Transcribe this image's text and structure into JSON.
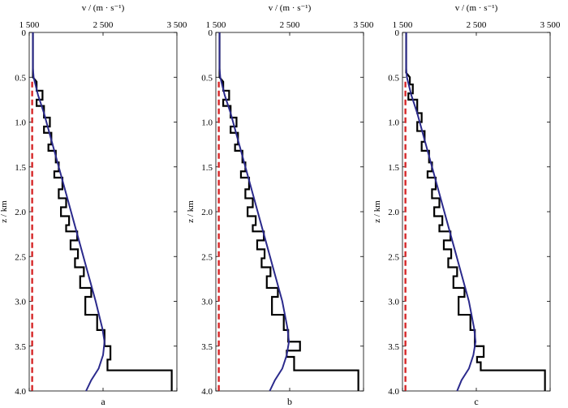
{
  "figure": {
    "panel_labels": [
      "a",
      "b",
      "c"
    ]
  },
  "colors": {
    "true_model": "#000000",
    "initial_model": "#d62728",
    "inverted_model": "#2b2a8c"
  },
  "chart_data": [
    {
      "type": "line",
      "panel": "a",
      "xlabel": "v / (m · s⁻¹)",
      "ylabel": "z / km",
      "xlim": [
        1500,
        3500
      ],
      "ylim": [
        0,
        4.0
      ],
      "xticks": [
        "1 500",
        "2 500",
        "3 500"
      ],
      "yticks": [
        "0",
        "0.5",
        "1.0",
        "1.5",
        "2.0",
        "2.5",
        "3.0",
        "3.5",
        "4.0"
      ],
      "x_axis_position": "top",
      "y_reversed": true,
      "series": [
        {
          "role": "true_model",
          "style": "solid-step",
          "points": [
            [
              1550,
              0
            ],
            [
              1550,
              0.5
            ],
            [
              1600,
              0.55
            ],
            [
              1600,
              0.65
            ],
            [
              1680,
              0.65
            ],
            [
              1680,
              0.75
            ],
            [
              1600,
              0.75
            ],
            [
              1600,
              0.82
            ],
            [
              1700,
              0.82
            ],
            [
              1700,
              0.95
            ],
            [
              1780,
              0.95
            ],
            [
              1780,
              1.05
            ],
            [
              1700,
              1.05
            ],
            [
              1700,
              1.12
            ],
            [
              1800,
              1.12
            ],
            [
              1800,
              1.25
            ],
            [
              1760,
              1.25
            ],
            [
              1760,
              1.32
            ],
            [
              1860,
              1.32
            ],
            [
              1860,
              1.45
            ],
            [
              1900,
              1.45
            ],
            [
              1900,
              1.55
            ],
            [
              1840,
              1.55
            ],
            [
              1840,
              1.62
            ],
            [
              1950,
              1.62
            ],
            [
              1950,
              1.75
            ],
            [
              1900,
              1.75
            ],
            [
              1900,
              1.85
            ],
            [
              2000,
              1.85
            ],
            [
              2000,
              1.95
            ],
            [
              1930,
              1.95
            ],
            [
              1930,
              2.05
            ],
            [
              2040,
              2.05
            ],
            [
              2040,
              2.15
            ],
            [
              2000,
              2.15
            ],
            [
              2000,
              2.22
            ],
            [
              2150,
              2.22
            ],
            [
              2150,
              2.32
            ],
            [
              2060,
              2.32
            ],
            [
              2060,
              2.42
            ],
            [
              2160,
              2.42
            ],
            [
              2160,
              2.52
            ],
            [
              2120,
              2.52
            ],
            [
              2120,
              2.62
            ],
            [
              2240,
              2.62
            ],
            [
              2240,
              2.72
            ],
            [
              2190,
              2.72
            ],
            [
              2190,
              2.85
            ],
            [
              2340,
              2.85
            ],
            [
              2340,
              2.95
            ],
            [
              2260,
              2.95
            ],
            [
              2260,
              3.15
            ],
            [
              2420,
              3.15
            ],
            [
              2420,
              3.32
            ],
            [
              2520,
              3.32
            ],
            [
              2520,
              3.5
            ],
            [
              2600,
              3.5
            ],
            [
              2600,
              3.65
            ],
            [
              2560,
              3.65
            ],
            [
              2560,
              3.77
            ],
            [
              3430,
              3.77
            ],
            [
              3430,
              4.0
            ]
          ]
        },
        {
          "role": "initial_model",
          "style": "dashed",
          "points": [
            [
              1540,
              0.55
            ],
            [
              1540,
              4.0
            ]
          ]
        },
        {
          "role": "inverted_model",
          "style": "solid",
          "points": [
            [
              1550,
              0
            ],
            [
              1550,
              0.4
            ],
            [
              1560,
              0.5
            ],
            [
              1620,
              0.7
            ],
            [
              1700,
              0.9
            ],
            [
              1800,
              1.2
            ],
            [
              1900,
              1.5
            ],
            [
              2000,
              1.8
            ],
            [
              2100,
              2.1
            ],
            [
              2200,
              2.4
            ],
            [
              2300,
              2.7
            ],
            [
              2400,
              3.0
            ],
            [
              2490,
              3.3
            ],
            [
              2520,
              3.45
            ],
            [
              2500,
              3.6
            ],
            [
              2440,
              3.75
            ],
            [
              2340,
              3.88
            ],
            [
              2270,
              4.0
            ]
          ]
        }
      ]
    },
    {
      "type": "line",
      "panel": "b",
      "xlabel": "v / (m · s⁻¹)",
      "ylabel": "z / km",
      "xlim": [
        1500,
        3500
      ],
      "ylim": [
        0,
        4.0
      ],
      "xticks": [
        "1 500",
        "2 500",
        "3 500"
      ],
      "yticks": [
        "0",
        "0.5",
        "1.0",
        "1.5",
        "2.0",
        "2.5",
        "3.0",
        "3.5",
        "4.0"
      ],
      "x_axis_position": "top",
      "y_reversed": true,
      "series": [
        {
          "role": "true_model",
          "style": "solid-step",
          "points": [
            [
              1550,
              0
            ],
            [
              1550,
              0.5
            ],
            [
              1600,
              0.55
            ],
            [
              1600,
              0.65
            ],
            [
              1680,
              0.65
            ],
            [
              1680,
              0.75
            ],
            [
              1600,
              0.75
            ],
            [
              1600,
              0.82
            ],
            [
              1700,
              0.82
            ],
            [
              1700,
              0.95
            ],
            [
              1780,
              0.95
            ],
            [
              1780,
              1.05
            ],
            [
              1700,
              1.05
            ],
            [
              1700,
              1.12
            ],
            [
              1800,
              1.12
            ],
            [
              1800,
              1.25
            ],
            [
              1760,
              1.25
            ],
            [
              1760,
              1.32
            ],
            [
              1860,
              1.32
            ],
            [
              1860,
              1.45
            ],
            [
              1900,
              1.45
            ],
            [
              1900,
              1.55
            ],
            [
              1840,
              1.55
            ],
            [
              1840,
              1.62
            ],
            [
              1950,
              1.62
            ],
            [
              1950,
              1.75
            ],
            [
              1900,
              1.75
            ],
            [
              1900,
              1.85
            ],
            [
              2000,
              1.85
            ],
            [
              2000,
              1.95
            ],
            [
              1930,
              1.95
            ],
            [
              1930,
              2.05
            ],
            [
              2040,
              2.05
            ],
            [
              2040,
              2.15
            ],
            [
              2000,
              2.15
            ],
            [
              2000,
              2.22
            ],
            [
              2150,
              2.22
            ],
            [
              2150,
              2.32
            ],
            [
              2060,
              2.32
            ],
            [
              2060,
              2.42
            ],
            [
              2160,
              2.42
            ],
            [
              2160,
              2.52
            ],
            [
              2120,
              2.52
            ],
            [
              2120,
              2.62
            ],
            [
              2240,
              2.62
            ],
            [
              2240,
              2.72
            ],
            [
              2190,
              2.72
            ],
            [
              2190,
              2.85
            ],
            [
              2340,
              2.85
            ],
            [
              2340,
              2.95
            ],
            [
              2260,
              2.95
            ],
            [
              2260,
              3.15
            ],
            [
              2420,
              3.15
            ],
            [
              2420,
              3.32
            ],
            [
              2480,
              3.32
            ],
            [
              2480,
              3.45
            ],
            [
              2640,
              3.45
            ],
            [
              2640,
              3.55
            ],
            [
              2460,
              3.55
            ],
            [
              2460,
              3.62
            ],
            [
              2560,
              3.62
            ],
            [
              2560,
              3.77
            ],
            [
              3430,
              3.77
            ],
            [
              3430,
              4.0
            ]
          ]
        },
        {
          "role": "initial_model",
          "style": "dashed",
          "points": [
            [
              1540,
              0.55
            ],
            [
              1540,
              4.0
            ]
          ]
        },
        {
          "role": "inverted_model",
          "style": "solid",
          "points": [
            [
              1550,
              0
            ],
            [
              1550,
              0.4
            ],
            [
              1560,
              0.5
            ],
            [
              1620,
              0.7
            ],
            [
              1700,
              0.9
            ],
            [
              1800,
              1.2
            ],
            [
              1900,
              1.5
            ],
            [
              2000,
              1.8
            ],
            [
              2100,
              2.1
            ],
            [
              2200,
              2.4
            ],
            [
              2300,
              2.7
            ],
            [
              2400,
              3.0
            ],
            [
              2470,
              3.3
            ],
            [
              2490,
              3.45
            ],
            [
              2460,
              3.6
            ],
            [
              2400,
              3.75
            ],
            [
              2300,
              3.88
            ],
            [
              2230,
              4.0
            ]
          ]
        }
      ]
    },
    {
      "type": "line",
      "panel": "c",
      "xlabel": "v / (m · s⁻¹)",
      "ylabel": "z / km",
      "xlim": [
        1500,
        3500
      ],
      "ylim": [
        0,
        4.0
      ],
      "xticks": [
        "1 500",
        "2 500",
        "3 500"
      ],
      "yticks": [
        "0",
        "0.5",
        "1.0",
        "1.5",
        "2.0",
        "2.5",
        "3.0",
        "3.5",
        "4.0"
      ],
      "x_axis_position": "top",
      "y_reversed": true,
      "series": [
        {
          "role": "true_model",
          "style": "solid-step",
          "points": [
            [
              1550,
              0
            ],
            [
              1550,
              0.45
            ],
            [
              1600,
              0.5
            ],
            [
              1600,
              0.58
            ],
            [
              1640,
              0.58
            ],
            [
              1640,
              0.68
            ],
            [
              1580,
              0.68
            ],
            [
              1580,
              0.75
            ],
            [
              1700,
              0.75
            ],
            [
              1700,
              0.9
            ],
            [
              1760,
              0.9
            ],
            [
              1760,
              1.0
            ],
            [
              1700,
              1.0
            ],
            [
              1700,
              1.1
            ],
            [
              1800,
              1.1
            ],
            [
              1800,
              1.22
            ],
            [
              1760,
              1.22
            ],
            [
              1760,
              1.32
            ],
            [
              1860,
              1.32
            ],
            [
              1860,
              1.45
            ],
            [
              1900,
              1.45
            ],
            [
              1900,
              1.55
            ],
            [
              1840,
              1.55
            ],
            [
              1840,
              1.62
            ],
            [
              1950,
              1.62
            ],
            [
              1950,
              1.75
            ],
            [
              1900,
              1.75
            ],
            [
              1900,
              1.85
            ],
            [
              2000,
              1.85
            ],
            [
              2000,
              1.95
            ],
            [
              1930,
              1.95
            ],
            [
              1930,
              2.05
            ],
            [
              2040,
              2.05
            ],
            [
              2040,
              2.15
            ],
            [
              2000,
              2.15
            ],
            [
              2000,
              2.22
            ],
            [
              2150,
              2.22
            ],
            [
              2150,
              2.32
            ],
            [
              2060,
              2.32
            ],
            [
              2060,
              2.42
            ],
            [
              2160,
              2.42
            ],
            [
              2160,
              2.52
            ],
            [
              2120,
              2.52
            ],
            [
              2120,
              2.62
            ],
            [
              2240,
              2.62
            ],
            [
              2240,
              2.72
            ],
            [
              2190,
              2.72
            ],
            [
              2190,
              2.85
            ],
            [
              2340,
              2.85
            ],
            [
              2340,
              2.95
            ],
            [
              2260,
              2.95
            ],
            [
              2260,
              3.15
            ],
            [
              2420,
              3.15
            ],
            [
              2420,
              3.32
            ],
            [
              2480,
              3.32
            ],
            [
              2480,
              3.5
            ],
            [
              2600,
              3.5
            ],
            [
              2600,
              3.62
            ],
            [
              2510,
              3.62
            ],
            [
              2510,
              3.68
            ],
            [
              2560,
              3.68
            ],
            [
              2560,
              3.77
            ],
            [
              3430,
              3.77
            ],
            [
              3430,
              4.0
            ]
          ]
        },
        {
          "role": "initial_model",
          "style": "dashed",
          "points": [
            [
              1540,
              0.55
            ],
            [
              1540,
              4.0
            ]
          ]
        },
        {
          "role": "inverted_model",
          "style": "solid",
          "points": [
            [
              1550,
              0
            ],
            [
              1550,
              0.4
            ],
            [
              1560,
              0.5
            ],
            [
              1620,
              0.7
            ],
            [
              1700,
              0.9
            ],
            [
              1800,
              1.2
            ],
            [
              1900,
              1.5
            ],
            [
              2000,
              1.8
            ],
            [
              2100,
              2.1
            ],
            [
              2200,
              2.4
            ],
            [
              2300,
              2.7
            ],
            [
              2400,
              3.0
            ],
            [
              2470,
              3.3
            ],
            [
              2490,
              3.45
            ],
            [
              2460,
              3.6
            ],
            [
              2400,
              3.75
            ],
            [
              2300,
              3.88
            ],
            [
              2240,
              4.0
            ]
          ]
        }
      ]
    }
  ]
}
